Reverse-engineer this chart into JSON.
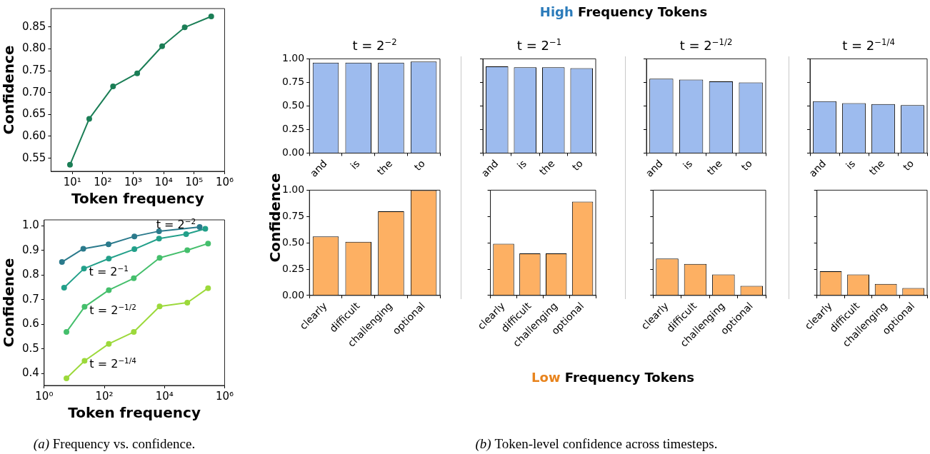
{
  "chart_data": [
    {
      "type": "line",
      "xlabel": "Token frequency",
      "ylabel": "Confidence",
      "log": "x",
      "marker": "circle",
      "xlim": [
        2,
        1000000
      ],
      "xticks": [
        {
          "value": 10,
          "label": "10¹"
        },
        {
          "value": 100,
          "label": "10²"
        },
        {
          "value": 1000,
          "label": "10³"
        },
        {
          "value": 10000,
          "label": "10⁴"
        },
        {
          "value": 100000,
          "label": "10⁵"
        },
        {
          "value": 1000000,
          "label": "10⁶"
        }
      ],
      "ylim": [
        0.52,
        0.892
      ],
      "yticks": [
        0.55,
        {
          "value": 0.6,
          "label": "0.60"
        },
        0.65,
        {
          "value": 0.7,
          "label": "0.70"
        },
        0.75,
        {
          "value": 0.8,
          "label": "0.80"
        },
        0.85
      ],
      "series": [
        {
          "color": "#1b7e56",
          "x": [
            8.4,
            36,
            218,
            1350,
            8900,
            49000,
            364000
          ],
          "values": [
            0.535,
            0.64,
            0.714,
            0.744,
            0.806,
            0.849,
            0.874
          ]
        }
      ]
    },
    {
      "type": "line",
      "xlabel": "Token frequency",
      "ylabel": "Confidence",
      "log": "x",
      "marker": "circle",
      "xlim": [
        1,
        1000000
      ],
      "xticks": [
        {
          "value": 1,
          "label": "10⁰"
        },
        {
          "value": 100,
          "label": "10²"
        },
        {
          "value": 10000,
          "label": "10⁴"
        },
        {
          "value": 1000000,
          "label": "10⁶"
        }
      ],
      "ylim": [
        0.352,
        1.024
      ],
      "yticks": [
        0.4,
        0.5,
        0.6,
        0.7,
        0.8,
        0.9,
        {
          "value": 1,
          "label": "1.0"
        }
      ],
      "annotations": [
        "(a) Frequency vs. confidence."
      ],
      "series": [
        {
          "name": "t = 2$^{−2}$",
          "color": "#2b7a8c",
          "x": [
            3.9,
            20,
            138,
            1000,
            6600,
            148000
          ],
          "values": [
            0.853,
            0.907,
            0.925,
            0.957,
            0.978,
            0.995
          ]
        },
        {
          "name": "t = 2$^{−1}$",
          "color": "#23a08a",
          "x": [
            4.6,
            21,
            141,
            1000,
            6600,
            52600,
            228000
          ],
          "values": [
            0.749,
            0.826,
            0.867,
            0.905,
            0.948,
            0.966,
            0.988
          ]
        },
        {
          "name": "t = 2$^{−1/2}$",
          "color": "#45bf6c",
          "x": [
            5.5,
            22,
            141,
            955,
            6900,
            57500,
            282000
          ],
          "values": [
            0.569,
            0.671,
            0.739,
            0.787,
            0.87,
            0.901,
            0.928
          ]
        },
        {
          "name": "t = 2$^{−1/4}$",
          "color": "#9cd93b",
          "x": [
            5.5,
            22,
            141,
            955,
            6900,
            57500,
            282000
          ],
          "values": [
            0.381,
            0.452,
            0.521,
            0.569,
            0.673,
            0.688,
            0.747
          ]
        }
      ]
    },
    {
      "type": "bar",
      "title": "t = 2$^{−2}$",
      "categories": [
        "and",
        "is",
        "the",
        "to"
      ],
      "ylim": [
        0,
        1
      ],
      "yticks": [
        {
          "value": 0,
          "label": "0.00"
        },
        0.25,
        {
          "value": 0.5,
          "label": "0.50"
        },
        0.75,
        {
          "value": 1,
          "label": "1.00"
        }
      ],
      "annotations": [
        "High Frequency Tokens"
      ],
      "series": [
        {
          "color": "#9dbbee",
          "values": [
            0.96,
            0.96,
            0.96,
            0.97
          ]
        }
      ]
    },
    {
      "type": "bar",
      "title": "t = 2$^{−1}$",
      "categories": [
        "and",
        "is",
        "the",
        "to"
      ],
      "ylim": [
        0,
        1
      ],
      "yticks": [
        {
          "value": 0,
          "label": null
        },
        {
          "value": 0.25,
          "label": null
        },
        {
          "value": 0.5,
          "label": null
        },
        {
          "value": 0.75,
          "label": null
        },
        {
          "value": 1,
          "label": null
        }
      ],
      "tick_labels": "x",
      "series": [
        {
          "color": "#9dbbee",
          "values": [
            0.92,
            0.91,
            0.91,
            0.9
          ]
        }
      ]
    },
    {
      "type": "bar",
      "title": "t = 2$^{−1/2}$",
      "categories": [
        "and",
        "is",
        "the",
        "to"
      ],
      "ylim": [
        0,
        1
      ],
      "yticks": [
        {
          "value": 0,
          "label": null
        },
        {
          "value": 0.25,
          "label": null
        },
        {
          "value": 0.5,
          "label": null
        },
        {
          "value": 0.75,
          "label": null
        },
        {
          "value": 1,
          "label": null
        }
      ],
      "tick_labels": "x",
      "series": [
        {
          "color": "#9dbbee",
          "values": [
            0.79,
            0.78,
            0.76,
            0.75
          ]
        }
      ]
    },
    {
      "type": "bar",
      "title": "t = 2$^{−1/4}$",
      "categories": [
        "and",
        "is",
        "the",
        "to"
      ],
      "ylim": [
        0,
        1
      ],
      "yticks": [
        {
          "value": 0,
          "label": null
        },
        {
          "value": 0.25,
          "label": null
        },
        {
          "value": 0.5,
          "label": null
        },
        {
          "value": 0.75,
          "label": null
        },
        {
          "value": 1,
          "label": null
        }
      ],
      "tick_labels": "x",
      "series": [
        {
          "color": "#9dbbee",
          "values": [
            0.55,
            0.53,
            0.52,
            0.51
          ]
        }
      ]
    },
    {
      "type": "bar",
      "ylabel": "Confidence",
      "categories": [
        "clearly",
        "difficult",
        "challenging",
        "optional"
      ],
      "ylim": [
        0,
        1
      ],
      "yticks": [
        {
          "value": 0,
          "label": "0.00"
        },
        0.25,
        {
          "value": 0.5,
          "label": "0.50"
        },
        0.75,
        {
          "value": 1,
          "label": "1.00"
        }
      ],
      "annotations": [
        "Low Frequency Tokens",
        "(b) Token-level confidence across timesteps."
      ],
      "series": [
        {
          "color": "#fdb063",
          "values": [
            0.56,
            0.51,
            0.8,
            1.0
          ]
        }
      ]
    },
    {
      "type": "bar",
      "categories": [
        "clearly",
        "difficult",
        "challenging",
        "optional"
      ],
      "ylim": [
        0,
        1
      ],
      "yticks": [
        {
          "value": 0,
          "label": null
        },
        {
          "value": 0.25,
          "label": null
        },
        {
          "value": 0.5,
          "label": null
        },
        {
          "value": 0.75,
          "label": null
        },
        {
          "value": 1,
          "label": null
        }
      ],
      "tick_labels": "x",
      "series": [
        {
          "color": "#fdb063",
          "values": [
            0.49,
            0.4,
            0.4,
            0.89
          ]
        }
      ]
    },
    {
      "type": "bar",
      "categories": [
        "clearly",
        "difficult",
        "challenging",
        "optional"
      ],
      "ylim": [
        0,
        1
      ],
      "yticks": [
        {
          "value": 0,
          "label": null
        },
        {
          "value": 0.25,
          "label": null
        },
        {
          "value": 0.5,
          "label": null
        },
        {
          "value": 0.75,
          "label": null
        },
        {
          "value": 1,
          "label": null
        }
      ],
      "tick_labels": "x",
      "series": [
        {
          "color": "#fdb063",
          "values": [
            0.35,
            0.3,
            0.2,
            0.09
          ]
        }
      ]
    },
    {
      "type": "bar",
      "categories": [
        "clearly",
        "difficult",
        "challenging",
        "optional"
      ],
      "ylim": [
        0,
        1
      ],
      "yticks": [
        {
          "value": 0,
          "label": null
        },
        {
          "value": 0.25,
          "label": null
        },
        {
          "value": 0.5,
          "label": null
        },
        {
          "value": 0.75,
          "label": null
        },
        {
          "value": 1,
          "label": null
        }
      ],
      "tick_labels": "x",
      "series": [
        {
          "color": "#fdb063",
          "values": [
            0.23,
            0.2,
            0.11,
            0.07
          ]
        }
      ]
    }
  ]
}
